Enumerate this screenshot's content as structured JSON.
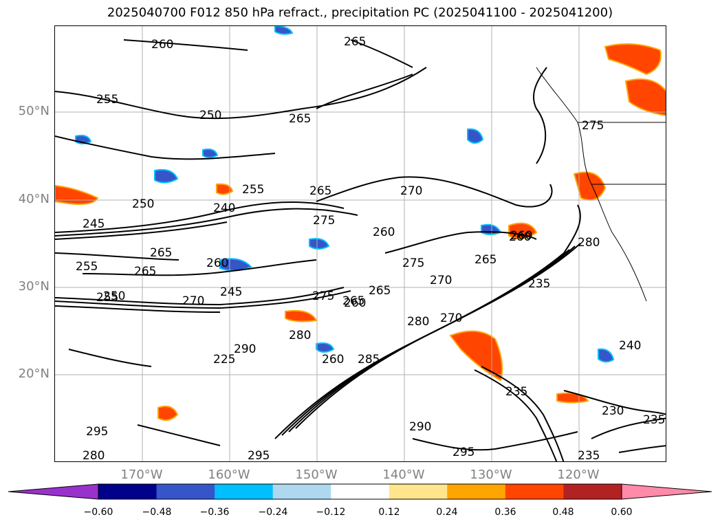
{
  "title": "2025040700 F012 850 hPa refract., precipitation PC (2025041100 - 2025041200)",
  "map": {
    "lat_labels": [
      "50°N",
      "40°N",
      "30°N",
      "20°N"
    ],
    "lon_labels": [
      "170°W",
      "160°W",
      "150°W",
      "140°W",
      "130°W",
      "120°W"
    ],
    "contour_labels": [
      "260",
      "265",
      "250",
      "255",
      "265",
      "255",
      "240",
      "250",
      "245",
      "265",
      "275",
      "270",
      "260",
      "265",
      "260",
      "255",
      "275",
      "265",
      "255",
      "280",
      "265",
      "250",
      "270",
      "245",
      "260",
      "275",
      "260",
      "265",
      "270",
      "235",
      "280",
      "265",
      "270",
      "285",
      "260",
      "225",
      "290",
      "295",
      "280",
      "295",
      "290",
      "295",
      "235",
      "230",
      "235",
      "240",
      "275",
      "280",
      "260",
      "235"
    ]
  },
  "colorbar": {
    "ticks": [
      "−0.60",
      "−0.48",
      "−0.36",
      "−0.24",
      "−0.12",
      "0.12",
      "0.24",
      "0.36",
      "0.48",
      "0.60"
    ],
    "colors": [
      "#9932cc",
      "#00008b",
      "#3555c8",
      "#00bfff",
      "#add8f0",
      "#ffffff",
      "#ffe68c",
      "#ffa500",
      "#ff4500",
      "#b22222",
      "#ff8aa9"
    ]
  }
}
